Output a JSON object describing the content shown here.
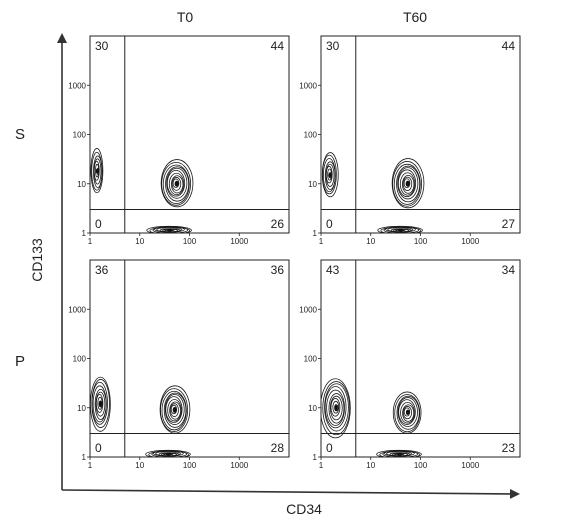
{
  "figure": {
    "columns": [
      "T0",
      "T60"
    ],
    "rows": [
      "S",
      "P"
    ],
    "y_axis_label": "CD133",
    "x_axis_label": "CD34"
  },
  "chart_data": {
    "type": "contour",
    "layout": "2x2 grid of flow-cytometry density contour plots",
    "xlabel": "CD34",
    "ylabel": "CD133",
    "xscale": "log",
    "yscale": "log",
    "xlim": [
      1,
      10000
    ],
    "ylim": [
      1,
      10000
    ],
    "x_tick_labels": [
      "1",
      "10",
      "100",
      "1000"
    ],
    "y_tick_labels": [
      "1",
      "10",
      "100",
      "1000"
    ],
    "gate_threshold": {
      "x": 5,
      "y": 3
    },
    "panels": [
      {
        "column": "T0",
        "row": "S",
        "quadrants": {
          "upper_left": "30",
          "upper_right": "44",
          "lower_left": "0",
          "lower_right": "26"
        },
        "populations": [
          {
            "cx": 1.4,
            "cy": 18,
            "sx": 0.12,
            "sy": 0.45,
            "levels": 7
          },
          {
            "cx": 55,
            "cy": 10,
            "sx": 0.32,
            "sy": 0.48,
            "levels": 11
          },
          {
            "cx": 40,
            "cy": 1.15,
            "sx": 0.45,
            "sy": 0.08,
            "levels": 9
          }
        ]
      },
      {
        "column": "T60",
        "row": "S",
        "quadrants": {
          "upper_left": "30",
          "upper_right": "44",
          "lower_left": "0",
          "lower_right": "27"
        },
        "populations": [
          {
            "cx": 1.5,
            "cy": 15,
            "sx": 0.16,
            "sy": 0.45,
            "levels": 8
          },
          {
            "cx": 55,
            "cy": 10,
            "sx": 0.32,
            "sy": 0.5,
            "levels": 11
          },
          {
            "cx": 40,
            "cy": 1.15,
            "sx": 0.45,
            "sy": 0.08,
            "levels": 9
          }
        ]
      },
      {
        "column": "T0",
        "row": "P",
        "quadrants": {
          "upper_left": "36",
          "upper_right": "36",
          "lower_left": "0",
          "lower_right": "28"
        },
        "populations": [
          {
            "cx": 1.6,
            "cy": 12,
            "sx": 0.2,
            "sy": 0.55,
            "levels": 9
          },
          {
            "cx": 50,
            "cy": 9,
            "sx": 0.3,
            "sy": 0.48,
            "levels": 11
          },
          {
            "cx": 38,
            "cy": 1.15,
            "sx": 0.45,
            "sy": 0.08,
            "levels": 9
          }
        ]
      },
      {
        "column": "T60",
        "row": "P",
        "quadrants": {
          "upper_left": "43",
          "upper_right": "34",
          "lower_left": "0",
          "lower_right": "23"
        },
        "populations": [
          {
            "cx": 2.0,
            "cy": 10,
            "sx": 0.3,
            "sy": 0.6,
            "levels": 10
          },
          {
            "cx": 55,
            "cy": 8,
            "sx": 0.28,
            "sy": 0.42,
            "levels": 10
          },
          {
            "cx": 38,
            "cy": 1.15,
            "sx": 0.45,
            "sy": 0.08,
            "levels": 9
          }
        ]
      }
    ]
  }
}
